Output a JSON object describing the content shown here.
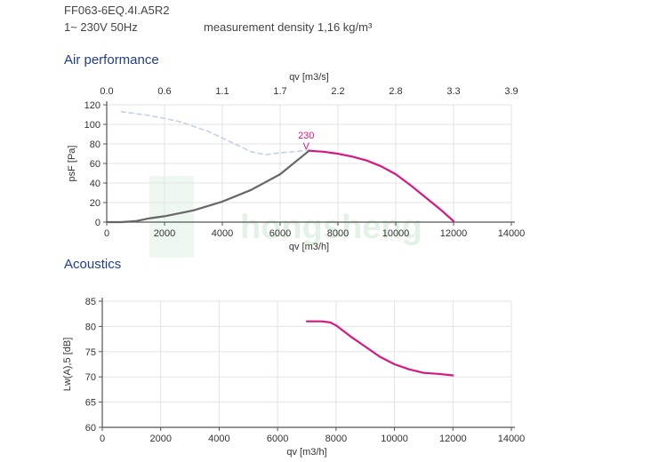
{
  "header": {
    "model": "FF063-6EQ.4I.A5R2",
    "supply": "1~ 230V 50Hz",
    "density": "measurement density 1,16 kg/m³"
  },
  "sections": {
    "air": "Air performance",
    "acoustics": "Acoustics"
  },
  "watermark_text": "hongsheng",
  "chart_data": [
    {
      "id": "air_performance",
      "type": "line",
      "xlabel": "qv [m3/h]",
      "ylabel": "psF [Pa]",
      "xlim": [
        0,
        14000
      ],
      "ylim": [
        0,
        120
      ],
      "x_ticks": [
        0,
        2000,
        4000,
        6000,
        8000,
        10000,
        12000,
        14000
      ],
      "y_ticks": [
        0,
        20,
        40,
        60,
        80,
        100,
        120
      ],
      "secondary_x": {
        "label": "qv [m3/s]",
        "ticks": [
          "0.0",
          "0.6",
          "1.1",
          "1.7",
          "2.2",
          "2.8",
          "3.3",
          "3.9"
        ]
      },
      "grid": true,
      "curve_label": {
        "text": "230",
        "marker": "V",
        "x": 6900,
        "y": 82
      },
      "series": [
        {
          "style": "dashed",
          "color": "#c5d1e6",
          "x": [
            500,
            1500,
            2500,
            3500,
            4500,
            5000,
            5500,
            6000,
            6500,
            7000
          ],
          "y": [
            113,
            109,
            103,
            93,
            79,
            72,
            69,
            71,
            72,
            74
          ]
        },
        {
          "style": "solid",
          "color": "#666666",
          "x": [
            0,
            500,
            1000,
            1500,
            2000,
            3000,
            4000,
            5000,
            6000,
            7000
          ],
          "y": [
            0,
            0,
            1,
            4,
            6,
            12,
            21,
            33,
            49,
            73
          ]
        },
        {
          "style": "solid",
          "color": "#d9177f",
          "x": [
            7000,
            7500,
            8000,
            8500,
            9000,
            9500,
            10000,
            10500,
            11000,
            11500,
            12000
          ],
          "y": [
            73,
            72,
            70,
            67,
            63,
            57,
            49,
            38,
            26,
            14,
            1
          ]
        }
      ]
    },
    {
      "id": "acoustics",
      "type": "line",
      "xlabel": "qv [m3/h]",
      "ylabel": "Lw(A),5 [dB]",
      "xlim": [
        0,
        14000
      ],
      "ylim": [
        60,
        85
      ],
      "x_ticks": [
        0,
        2000,
        4000,
        6000,
        8000,
        10000,
        12000,
        14000
      ],
      "y_ticks": [
        60,
        65,
        70,
        75,
        80,
        85
      ],
      "grid": true,
      "series": [
        {
          "style": "solid",
          "color": "#d9177f",
          "x": [
            7000,
            7500,
            7800,
            8000,
            8500,
            9000,
            9500,
            10000,
            10500,
            11000,
            11500,
            12000
          ],
          "y": [
            81,
            81,
            80.8,
            80.2,
            78,
            76,
            74,
            72.5,
            71.5,
            70.8,
            70.6,
            70.3
          ]
        }
      ]
    }
  ]
}
